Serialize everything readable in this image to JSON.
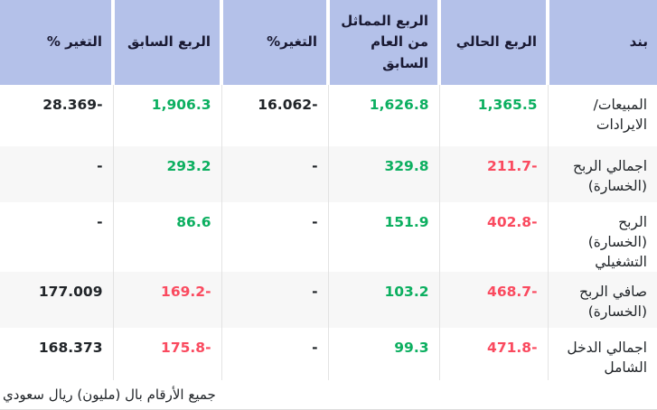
{
  "colors": {
    "header_bg": "#b4c1e9",
    "header_text": "#1a1a33",
    "positive": "#0caf60",
    "negative": "#fa4a5f",
    "text": "#212529",
    "stripe": "#f7f7f7",
    "separator": "#e3e3e3",
    "border_bottom": "#dcdcdc"
  },
  "table": {
    "columns": [
      {
        "key": "item",
        "label": "بند",
        "width": 121
      },
      {
        "key": "current-quarter",
        "label": "الربع الحالي",
        "width": 120
      },
      {
        "key": "same-quarter-last-year",
        "label": "الربع المماثل من العام السابق",
        "width": 123
      },
      {
        "key": "change-yoy",
        "label": "التغير%",
        "width": 118
      },
      {
        "key": "previous-quarter",
        "label": "الربع السابق",
        "width": 120
      },
      {
        "key": "change-qoq",
        "label": "التغير %",
        "width": 125
      }
    ],
    "rows": [
      {
        "item": "المبيعات/ الايرادات",
        "values": [
          {
            "text": "1,365.5",
            "tone": "green"
          },
          {
            "text": "1,626.8",
            "tone": "green"
          },
          {
            "text": "-16.062",
            "tone": "plain"
          },
          {
            "text": "1,906.3",
            "tone": "green"
          },
          {
            "text": "-28.369",
            "tone": "plain"
          }
        ]
      },
      {
        "item": "اجمالي الربح (الخسارة)",
        "values": [
          {
            "text": "-211.7",
            "tone": "red"
          },
          {
            "text": "329.8",
            "tone": "green"
          },
          {
            "text": "-",
            "tone": "plain"
          },
          {
            "text": "293.2",
            "tone": "green"
          },
          {
            "text": "-",
            "tone": "plain"
          }
        ]
      },
      {
        "item": "الربح (الخسارة) التشغيلي",
        "values": [
          {
            "text": "-402.8",
            "tone": "red"
          },
          {
            "text": "151.9",
            "tone": "green"
          },
          {
            "text": "-",
            "tone": "plain"
          },
          {
            "text": "86.6",
            "tone": "green"
          },
          {
            "text": "-",
            "tone": "plain"
          }
        ]
      },
      {
        "item": "صافي الربح (الخسارة)",
        "values": [
          {
            "text": "-468.7",
            "tone": "red"
          },
          {
            "text": "103.2",
            "tone": "green"
          },
          {
            "text": "-",
            "tone": "plain"
          },
          {
            "text": "-169.2",
            "tone": "red"
          },
          {
            "text": "177.009",
            "tone": "plain"
          }
        ]
      },
      {
        "item": "اجمالي الدخل الشامل",
        "values": [
          {
            "text": "-471.8",
            "tone": "red"
          },
          {
            "text": "99.3",
            "tone": "green"
          },
          {
            "text": "-",
            "tone": "plain"
          },
          {
            "text": "-175.8",
            "tone": "red"
          },
          {
            "text": "168.373",
            "tone": "plain"
          }
        ]
      }
    ]
  },
  "footer": {
    "note": "جميع الأرقام بال (مليون) ريال سعودي"
  }
}
